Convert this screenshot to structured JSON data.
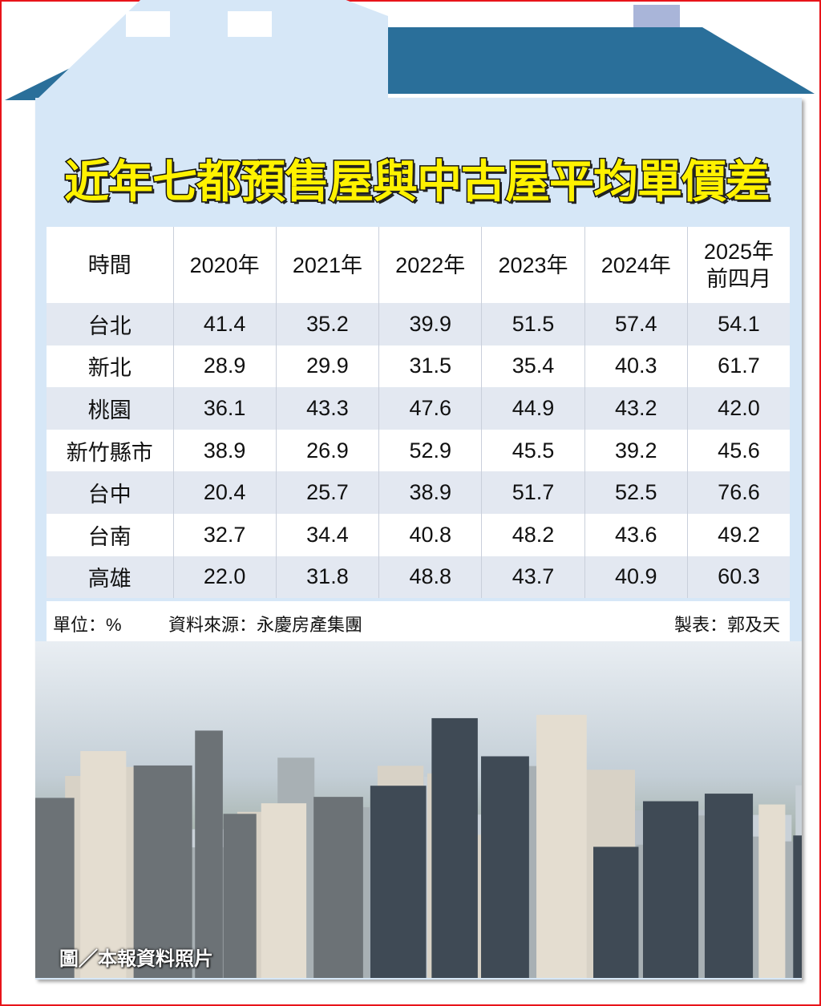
{
  "title": "近年七都預售屋與中古屋平均單價差",
  "colors": {
    "roof": "#2a6f9a",
    "house_body": "#d6e7f7",
    "chimney": "#a9b5d9",
    "title_fill": "#fff200",
    "row_stripe": "#e3e8f1",
    "frame": "#e8141a"
  },
  "chart_data": {
    "type": "table",
    "title": "近年七都預售屋與中古屋平均單價差",
    "corner_header": "時間",
    "columns": [
      "2020年",
      "2021年",
      "2022年",
      "2023年",
      "2024年",
      "2025年\n前四月"
    ],
    "column_lines": [
      [
        "2020年"
      ],
      [
        "2021年"
      ],
      [
        "2022年"
      ],
      [
        "2023年"
      ],
      [
        "2024年"
      ],
      [
        "2025年",
        "前四月"
      ]
    ],
    "rows": [
      {
        "label": "台北",
        "values": [
          "41.4",
          "35.2",
          "39.9",
          "51.5",
          "57.4",
          "54.1"
        ]
      },
      {
        "label": "新北",
        "values": [
          "28.9",
          "29.9",
          "31.5",
          "35.4",
          "40.3",
          "61.7"
        ]
      },
      {
        "label": "桃園",
        "values": [
          "36.1",
          "43.3",
          "47.6",
          "44.9",
          "43.2",
          "42.0"
        ]
      },
      {
        "label": "新竹縣市",
        "values": [
          "38.9",
          "26.9",
          "52.9",
          "45.5",
          "39.2",
          "45.6"
        ]
      },
      {
        "label": "台中",
        "values": [
          "20.4",
          "25.7",
          "38.9",
          "51.7",
          "52.5",
          "76.6"
        ]
      },
      {
        "label": "台南",
        "values": [
          "32.7",
          "34.4",
          "40.8",
          "48.2",
          "43.6",
          "49.2"
        ]
      },
      {
        "label": "高雄",
        "values": [
          "22.0",
          "31.8",
          "48.8",
          "43.7",
          "40.9",
          "60.3"
        ]
      }
    ],
    "unit": "單位：%",
    "source": "資料來源：永慶房產集團",
    "credit": "製表：郭及天"
  },
  "photo_caption": "圖／本報資料照片"
}
